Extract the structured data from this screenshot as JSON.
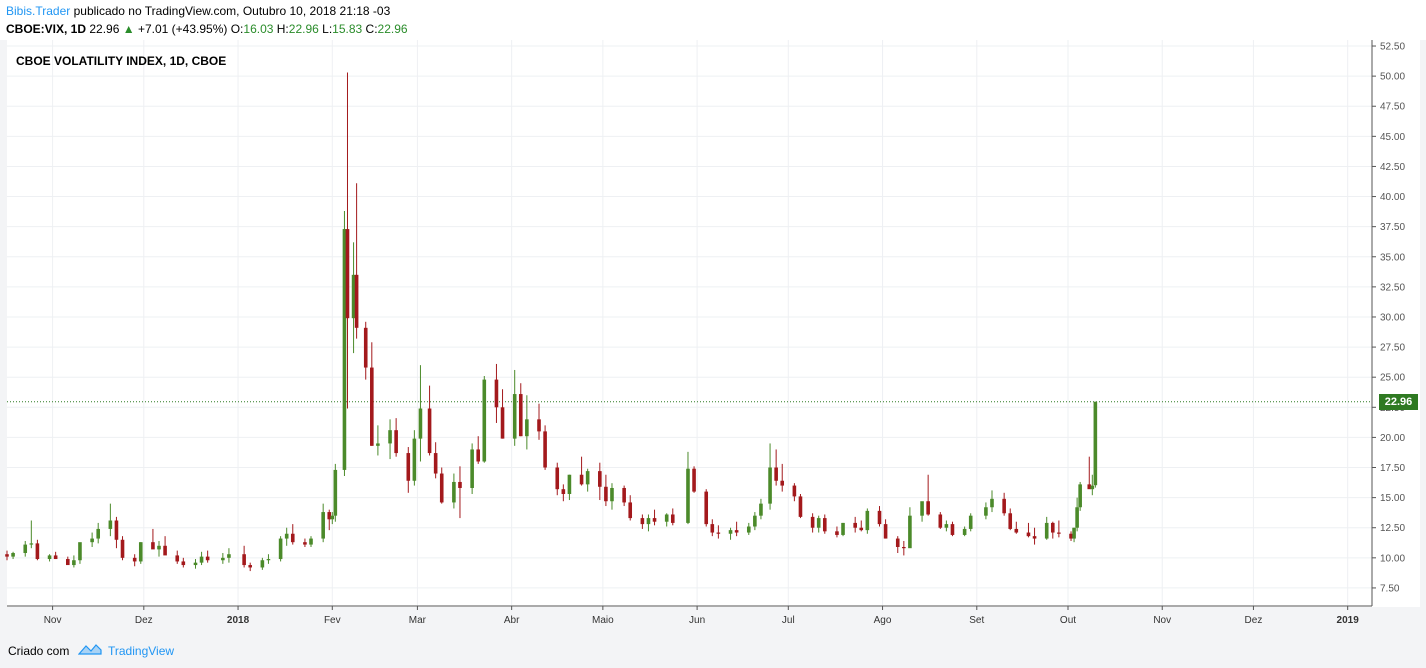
{
  "header": {
    "publisher": "Bibis.Trader",
    "published_text": "publicado no TradingView.com, Outubro 10, 2018 21:18 -03",
    "symbol": "CBOE:VIX, 1D",
    "last": "22.96",
    "change": "+7.01 (+43.95%)",
    "o_label": "O:",
    "o_value": "16.03",
    "h_label": "H:",
    "h_value": "22.96",
    "l_label": "L:",
    "l_value": "15.83",
    "c_label": "C:",
    "c_value": "22.96"
  },
  "footer": {
    "created": "Criado com",
    "brand": "TradingView"
  },
  "colors": {
    "up": "#4b8a2a",
    "down": "#a3191c",
    "grid": "#eef0f3",
    "link": "#2196f3"
  },
  "chart_data": {
    "type": "candlestick",
    "title": "CBOE VOLATILITY INDEX, 1D, CBOE",
    "last_price_label": "22.96",
    "last_price": 22.96,
    "ylim": [
      6.0,
      53.0
    ],
    "y_ticks": [
      "7.50",
      "10.00",
      "12.50",
      "15.00",
      "17.50",
      "20.00",
      "22.50",
      "25.00",
      "27.50",
      "30.00",
      "32.50",
      "35.00",
      "37.50",
      "40.00",
      "42.50",
      "45.00",
      "47.50",
      "50.00",
      "52.50"
    ],
    "x_labels": [
      {
        "date": "2017-11-01",
        "label": "Nov",
        "bold": false
      },
      {
        "date": "2017-12-01",
        "label": "Dez",
        "bold": false
      },
      {
        "date": "2018-01-01",
        "label": "2018",
        "bold": true
      },
      {
        "date": "2018-02-01",
        "label": "Fev",
        "bold": false
      },
      {
        "date": "2018-03-01",
        "label": "Mar",
        "bold": false
      },
      {
        "date": "2018-04-01",
        "label": "Abr",
        "bold": false
      },
      {
        "date": "2018-05-01",
        "label": "Maio",
        "bold": false
      },
      {
        "date": "2018-06-01",
        "label": "Jun",
        "bold": false
      },
      {
        "date": "2018-07-01",
        "label": "Jul",
        "bold": false
      },
      {
        "date": "2018-08-01",
        "label": "Ago",
        "bold": false
      },
      {
        "date": "2018-09-01",
        "label": "Set",
        "bold": false
      },
      {
        "date": "2018-10-01",
        "label": "Out",
        "bold": false
      },
      {
        "date": "2018-11-01",
        "label": "Nov",
        "bold": false
      },
      {
        "date": "2018-12-01",
        "label": "Dez",
        "bold": false
      },
      {
        "date": "2019-01-01",
        "label": "2019",
        "bold": true
      }
    ],
    "x_range": [
      "2017-10-17",
      "2019-01-09"
    ],
    "candles": [
      [
        "2017-10-17",
        10.3,
        10.6,
        9.8,
        10.1
      ],
      [
        "2017-10-19",
        10.1,
        10.5,
        9.9,
        10.4
      ],
      [
        "2017-10-23",
        10.4,
        11.4,
        10.1,
        11.1
      ],
      [
        "2017-10-25",
        11.1,
        13.1,
        10.8,
        11.2
      ],
      [
        "2017-10-27",
        11.2,
        11.5,
        9.8,
        9.9
      ],
      [
        "2017-10-31",
        9.9,
        10.3,
        9.7,
        10.2
      ],
      [
        "2017-11-02",
        10.2,
        10.5,
        9.9,
        9.9
      ],
      [
        "2017-11-06",
        9.9,
        10.1,
        9.6,
        9.4
      ],
      [
        "2017-11-08",
        9.4,
        10.2,
        9.2,
        9.8
      ],
      [
        "2017-11-10",
        9.8,
        11.0,
        9.5,
        11.3
      ],
      [
        "2017-11-14",
        11.3,
        12.1,
        10.9,
        11.6
      ],
      [
        "2017-11-16",
        11.6,
        12.9,
        11.2,
        12.4
      ],
      [
        "2017-11-20",
        12.4,
        14.5,
        11.8,
        13.1
      ],
      [
        "2017-11-22",
        13.1,
        13.4,
        10.8,
        11.5
      ],
      [
        "2017-11-24",
        11.5,
        11.8,
        9.8,
        10.0
      ],
      [
        "2017-11-28",
        10.0,
        10.3,
        9.3,
        9.7
      ],
      [
        "2017-11-30",
        9.7,
        11.3,
        9.5,
        11.3
      ],
      [
        "2017-12-04",
        11.3,
        12.4,
        11.0,
        10.7
      ],
      [
        "2017-12-06",
        10.7,
        11.4,
        10.1,
        11.0
      ],
      [
        "2017-12-08",
        11.0,
        11.8,
        10.5,
        10.2
      ],
      [
        "2017-12-12",
        10.2,
        10.6,
        9.5,
        9.7
      ],
      [
        "2017-12-14",
        9.7,
        10.0,
        9.2,
        9.4
      ],
      [
        "2017-12-18",
        9.4,
        9.9,
        9.1,
        9.6
      ],
      [
        "2017-12-20",
        9.6,
        10.5,
        9.4,
        10.1
      ],
      [
        "2017-12-22",
        10.1,
        10.6,
        9.6,
        9.8
      ],
      [
        "2017-12-27",
        9.8,
        10.4,
        9.5,
        10.0
      ],
      [
        "2017-12-29",
        10.0,
        10.8,
        9.6,
        10.3
      ],
      [
        "2018-01-03",
        10.3,
        11.0,
        9.2,
        9.4
      ],
      [
        "2018-01-05",
        9.4,
        9.6,
        8.9,
        9.2
      ],
      [
        "2018-01-09",
        9.2,
        10.0,
        9.0,
        9.8
      ],
      [
        "2018-01-11",
        9.8,
        10.3,
        9.5,
        9.9
      ],
      [
        "2018-01-15",
        9.9,
        11.8,
        9.7,
        11.6
      ],
      [
        "2018-01-17",
        11.6,
        12.5,
        11.0,
        12.0
      ],
      [
        "2018-01-19",
        12.0,
        12.8,
        11.1,
        11.3
      ],
      [
        "2018-01-23",
        11.3,
        11.6,
        10.9,
        11.1
      ],
      [
        "2018-01-25",
        11.1,
        11.8,
        10.9,
        11.6
      ],
      [
        "2018-01-29",
        11.6,
        14.5,
        11.3,
        13.8
      ],
      [
        "2018-01-31",
        13.8,
        14.0,
        12.3,
        13.2
      ],
      [
        "2018-02-01",
        13.2,
        13.8,
        12.8,
        13.5
      ],
      [
        "2018-02-02",
        13.5,
        17.8,
        13.0,
        17.3
      ],
      [
        "2018-02-05",
        17.3,
        38.8,
        16.8,
        37.3
      ],
      [
        "2018-02-06",
        37.3,
        50.3,
        22.4,
        29.9
      ],
      [
        "2018-02-08",
        29.9,
        36.2,
        27.0,
        33.5
      ],
      [
        "2018-02-09",
        33.5,
        41.1,
        28.2,
        29.1
      ],
      [
        "2018-02-12",
        29.1,
        29.6,
        24.8,
        25.8
      ],
      [
        "2018-02-14",
        25.8,
        27.9,
        19.3,
        19.3
      ],
      [
        "2018-02-16",
        19.3,
        21.0,
        18.5,
        19.5
      ],
      [
        "2018-02-20",
        19.5,
        21.5,
        18.2,
        20.6
      ],
      [
        "2018-02-22",
        20.6,
        21.6,
        18.4,
        18.7
      ],
      [
        "2018-02-26",
        18.7,
        19.2,
        15.4,
        16.4
      ],
      [
        "2018-02-28",
        16.4,
        20.6,
        16.0,
        19.9
      ],
      [
        "2018-03-02",
        19.9,
        26.0,
        18.0,
        22.4
      ],
      [
        "2018-03-05",
        22.4,
        24.3,
        18.5,
        18.7
      ],
      [
        "2018-03-07",
        18.7,
        19.6,
        16.6,
        17.0
      ],
      [
        "2018-03-09",
        17.0,
        17.5,
        14.5,
        14.6
      ],
      [
        "2018-03-13",
        14.6,
        17.0,
        14.1,
        16.3
      ],
      [
        "2018-03-15",
        16.3,
        17.6,
        13.3,
        15.8
      ],
      [
        "2018-03-19",
        15.8,
        19.5,
        15.3,
        19.0
      ],
      [
        "2018-03-21",
        19.0,
        20.1,
        17.8,
        18.0
      ],
      [
        "2018-03-23",
        18.0,
        25.1,
        17.9,
        24.8
      ],
      [
        "2018-03-27",
        24.8,
        26.1,
        21.2,
        22.5
      ],
      [
        "2018-03-29",
        22.5,
        24.0,
        19.9,
        19.9
      ],
      [
        "2018-04-02",
        19.9,
        25.6,
        19.3,
        23.6
      ],
      [
        "2018-04-04",
        23.6,
        24.5,
        20.1,
        20.1
      ],
      [
        "2018-04-06",
        20.1,
        23.5,
        19.0,
        21.5
      ],
      [
        "2018-04-10",
        21.5,
        22.8,
        19.8,
        20.5
      ],
      [
        "2018-04-12",
        20.5,
        21.0,
        17.3,
        17.5
      ],
      [
        "2018-04-16",
        17.5,
        17.9,
        15.2,
        15.7
      ],
      [
        "2018-04-18",
        15.7,
        16.1,
        14.7,
        15.3
      ],
      [
        "2018-04-20",
        15.3,
        16.9,
        14.8,
        16.9
      ],
      [
        "2018-04-24",
        16.9,
        18.4,
        16.0,
        16.1
      ],
      [
        "2018-04-26",
        16.1,
        17.4,
        15.5,
        17.2
      ],
      [
        "2018-04-30",
        17.2,
        17.9,
        14.8,
        15.9
      ],
      [
        "2018-05-02",
        15.9,
        16.9,
        14.3,
        14.7
      ],
      [
        "2018-05-04",
        14.7,
        16.2,
        14.0,
        15.8
      ],
      [
        "2018-05-08",
        15.8,
        16.0,
        14.3,
        14.6
      ],
      [
        "2018-05-10",
        14.6,
        15.2,
        13.1,
        13.3
      ],
      [
        "2018-05-14",
        13.3,
        13.6,
        12.4,
        12.8
      ],
      [
        "2018-05-16",
        12.8,
        13.6,
        12.2,
        13.3
      ],
      [
        "2018-05-18",
        13.3,
        14.0,
        12.7,
        13.0
      ],
      [
        "2018-05-22",
        13.0,
        13.7,
        12.6,
        13.6
      ],
      [
        "2018-05-24",
        13.6,
        14.1,
        12.7,
        12.9
      ],
      [
        "2018-05-29",
        12.9,
        18.8,
        12.8,
        17.4
      ],
      [
        "2018-05-31",
        17.4,
        17.6,
        15.4,
        15.5
      ],
      [
        "2018-06-04",
        15.5,
        15.7,
        12.6,
        12.8
      ],
      [
        "2018-06-06",
        12.8,
        13.2,
        11.8,
        12.1
      ],
      [
        "2018-06-08",
        12.1,
        12.7,
        11.6,
        12.0
      ],
      [
        "2018-06-12",
        12.0,
        12.5,
        11.5,
        12.3
      ],
      [
        "2018-06-14",
        12.3,
        13.0,
        11.8,
        12.1
      ],
      [
        "2018-06-18",
        12.1,
        12.9,
        11.9,
        12.6
      ],
      [
        "2018-06-20",
        12.6,
        13.8,
        12.3,
        13.5
      ],
      [
        "2018-06-22",
        13.5,
        14.9,
        13.2,
        14.5
      ],
      [
        "2018-06-25",
        14.5,
        19.5,
        14.0,
        17.5
      ],
      [
        "2018-06-27",
        17.5,
        19.0,
        16.0,
        16.4
      ],
      [
        "2018-06-29",
        16.4,
        17.8,
        15.5,
        16.0
      ],
      [
        "2018-07-03",
        16.0,
        16.2,
        14.7,
        15.1
      ],
      [
        "2018-07-05",
        15.1,
        15.3,
        13.3,
        13.4
      ],
      [
        "2018-07-09",
        13.4,
        13.7,
        12.1,
        12.5
      ],
      [
        "2018-07-11",
        12.5,
        13.5,
        12.1,
        13.3
      ],
      [
        "2018-07-13",
        13.3,
        13.6,
        12.0,
        12.2
      ],
      [
        "2018-07-17",
        12.2,
        12.6,
        11.7,
        11.9
      ],
      [
        "2018-07-19",
        11.9,
        12.9,
        11.8,
        12.9
      ],
      [
        "2018-07-23",
        12.9,
        13.4,
        12.1,
        12.5
      ],
      [
        "2018-07-25",
        12.5,
        13.1,
        12.2,
        12.3
      ],
      [
        "2018-07-27",
        12.3,
        14.1,
        12.0,
        13.9
      ],
      [
        "2018-07-31",
        13.9,
        14.3,
        12.6,
        12.8
      ],
      [
        "2018-08-02",
        12.8,
        13.2,
        11.6,
        11.6
      ],
      [
        "2018-08-06",
        11.6,
        11.8,
        10.4,
        10.9
      ],
      [
        "2018-08-08",
        10.9,
        11.4,
        10.2,
        10.8
      ],
      [
        "2018-08-10",
        10.8,
        14.2,
        10.9,
        13.5
      ],
      [
        "2018-08-14",
        13.5,
        14.6,
        13.0,
        14.7
      ],
      [
        "2018-08-16",
        14.7,
        16.9,
        13.5,
        13.6
      ],
      [
        "2018-08-20",
        13.6,
        13.8,
        12.4,
        12.5
      ],
      [
        "2018-08-22",
        12.5,
        13.1,
        12.2,
        12.8
      ],
      [
        "2018-08-24",
        12.8,
        13.0,
        11.8,
        11.9
      ],
      [
        "2018-08-28",
        11.9,
        12.6,
        11.8,
        12.4
      ],
      [
        "2018-08-30",
        12.4,
        13.7,
        12.2,
        13.5
      ],
      [
        "2018-09-04",
        13.5,
        14.6,
        13.2,
        14.2
      ],
      [
        "2018-09-06",
        14.2,
        15.6,
        13.8,
        14.9
      ],
      [
        "2018-09-10",
        14.9,
        15.4,
        13.5,
        13.7
      ],
      [
        "2018-09-12",
        13.7,
        14.1,
        12.3,
        12.4
      ],
      [
        "2018-09-14",
        12.4,
        13.0,
        12.0,
        12.1
      ],
      [
        "2018-09-18",
        12.1,
        12.9,
        11.7,
        11.8
      ],
      [
        "2018-09-20",
        11.8,
        12.5,
        11.1,
        11.6
      ],
      [
        "2018-09-24",
        11.6,
        13.4,
        11.5,
        12.9
      ],
      [
        "2018-09-26",
        12.9,
        13.0,
        11.6,
        12.1
      ],
      [
        "2018-09-28",
        12.1,
        13.1,
        11.7,
        12.0
      ],
      [
        "2018-10-02",
        12.0,
        12.2,
        11.4,
        11.6
      ],
      [
        "2018-10-03",
        11.6,
        12.5,
        11.3,
        12.5
      ],
      [
        "2018-10-04",
        12.5,
        15.0,
        12.2,
        14.2
      ],
      [
        "2018-10-05",
        14.2,
        16.3,
        13.9,
        16.1
      ],
      [
        "2018-10-08",
        16.1,
        18.4,
        15.9,
        15.7
      ],
      [
        "2018-10-09",
        15.7,
        16.9,
        15.2,
        16.0
      ],
      [
        "2018-10-10",
        16.03,
        22.96,
        15.83,
        22.96
      ]
    ]
  }
}
